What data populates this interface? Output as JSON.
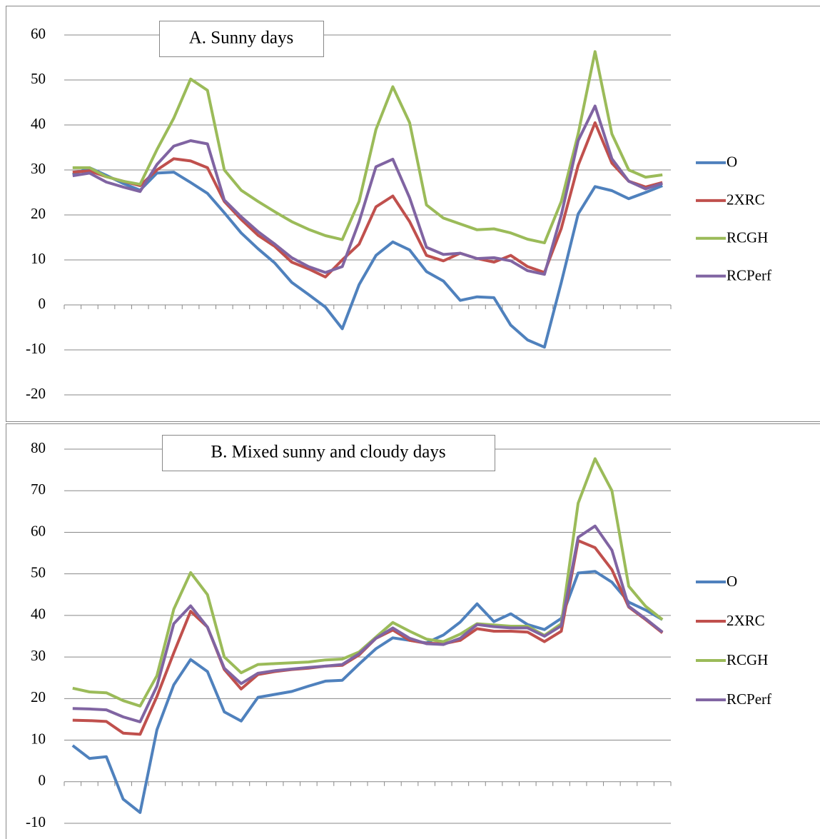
{
  "chart_data": [
    {
      "type": "line",
      "title": "A. Sunny days",
      "categories": [
        null,
        null,
        null,
        null,
        null,
        null,
        null,
        null,
        null,
        null,
        null,
        null,
        null,
        null,
        null,
        null,
        null,
        null,
        null,
        null,
        null,
        null,
        null,
        null,
        null,
        null,
        null,
        null,
        null,
        null,
        null,
        null,
        null,
        null,
        null,
        null
      ],
      "series": [
        {
          "name": "O",
          "color": "#4f81bd",
          "values": [
            29,
            30.5,
            28.8,
            27,
            25.5,
            29.3,
            29.5,
            27.2,
            24.8,
            20.5,
            16,
            12.5,
            9.3,
            5,
            2.3,
            -0.5,
            -5.3,
            4.5,
            11,
            14,
            12.2,
            7.4,
            5.3,
            1,
            1.8,
            1.6,
            -4.5,
            -7.8,
            -9.4,
            5,
            20.2,
            26.3,
            25.4,
            23.6,
            25,
            26.5
          ]
        },
        {
          "name": "2XRC",
          "color": "#c0504d",
          "values": [
            29.5,
            29.8,
            28.5,
            27.5,
            26.5,
            30,
            32.5,
            32,
            30.5,
            23,
            19,
            15.5,
            13,
            9.5,
            8,
            6.2,
            10,
            13.5,
            21.8,
            24.2,
            18.5,
            11,
            9.8,
            11.5,
            10.3,
            9.5,
            11,
            8.5,
            7.2,
            17,
            31,
            40.5,
            31.5,
            27.5,
            26.2,
            27.2
          ]
        },
        {
          "name": "RCGH",
          "color": "#9bbb59",
          "values": [
            30.5,
            30.5,
            28.5,
            27.5,
            26.8,
            34.5,
            41.5,
            50.2,
            47.7,
            30,
            25.5,
            23,
            20.7,
            18.5,
            16.8,
            15.4,
            14.5,
            23,
            39,
            48.5,
            40.5,
            22.2,
            19.3,
            18,
            16.7,
            16.9,
            16,
            14.6,
            13.8,
            23,
            38,
            56.3,
            38,
            30,
            28.4,
            28.9
          ]
        },
        {
          "name": "RCPerf",
          "color": "#8064a2",
          "values": [
            28.7,
            29.3,
            27.3,
            26.2,
            25.2,
            31.2,
            35.3,
            36.5,
            35.8,
            23.3,
            19.6,
            16.3,
            13.5,
            10.5,
            8.5,
            7.2,
            8.5,
            18.5,
            30.7,
            32.4,
            23.8,
            12.8,
            11.2,
            11.5,
            10.3,
            10.5,
            9.8,
            7.6,
            6.8,
            20,
            36.5,
            44.2,
            32.5,
            27.5,
            25.8,
            27
          ]
        }
      ],
      "ylim": [
        -20,
        60
      ],
      "yticks": [
        -20,
        -10,
        0,
        10,
        20,
        30,
        40,
        50,
        60
      ],
      "grid": true,
      "legend": "right"
    },
    {
      "type": "line",
      "title": "B. Mixed sunny and cloudy days",
      "categories": [
        null,
        null,
        null,
        null,
        null,
        null,
        null,
        null,
        null,
        null,
        null,
        null,
        null,
        null,
        null,
        null,
        null,
        null,
        null,
        null,
        null,
        null,
        null,
        null,
        null,
        null,
        null,
        null,
        null,
        null,
        null,
        null,
        null,
        null,
        null,
        null
      ],
      "series": [
        {
          "name": "O",
          "color": "#4f81bd",
          "values": [
            8.7,
            5.6,
            6,
            -4.2,
            -7.4,
            12.5,
            23.3,
            29.4,
            26.5,
            16.8,
            14.6,
            20.3,
            21,
            21.7,
            23,
            24.2,
            24.4,
            28.3,
            32,
            34.6,
            34,
            33.4,
            35.3,
            38.4,
            42.8,
            38.5,
            40.4,
            37.8,
            36.6,
            39.3,
            50.2,
            50.6,
            48,
            43.2,
            41.3,
            39
          ]
        },
        {
          "name": "2XRC",
          "color": "#c0504d",
          "values": [
            14.8,
            14.7,
            14.5,
            11.7,
            11.4,
            20.5,
            31,
            41,
            37.2,
            27,
            22.3,
            25.8,
            26.5,
            27,
            27.3,
            27.8,
            28,
            30.5,
            34.5,
            36.5,
            34,
            33.3,
            33.2,
            34,
            36.8,
            36.2,
            36.2,
            36,
            33.7,
            36.2,
            58,
            56.3,
            51,
            42,
            39,
            35.8
          ]
        },
        {
          "name": "RCGH",
          "color": "#9bbb59",
          "values": [
            22.5,
            21.6,
            21.4,
            19.5,
            18.2,
            25.5,
            41.5,
            50.3,
            45,
            30,
            26.2,
            28.2,
            28.4,
            28.6,
            28.8,
            29.3,
            29.5,
            31.2,
            34.8,
            38.3,
            36.2,
            34.3,
            33.7,
            35.5,
            38,
            37.7,
            37.4,
            37.4,
            35.2,
            38,
            67,
            77.7,
            70,
            47,
            42.2,
            39
          ]
        },
        {
          "name": "RCPerf",
          "color": "#8064a2",
          "values": [
            17.6,
            17.5,
            17.3,
            15.6,
            14.4,
            23,
            38,
            42.3,
            37.2,
            27.3,
            23.6,
            26.1,
            26.7,
            27.1,
            27.5,
            27.8,
            28.2,
            30.8,
            34.5,
            37,
            34.5,
            33.2,
            33,
            34.5,
            37.8,
            37.3,
            37,
            37,
            35,
            37.5,
            58.8,
            61.5,
            55.7,
            42.2,
            39.2,
            36
          ]
        }
      ],
      "ylim": [
        -10,
        80
      ],
      "yticks": [
        -10,
        0,
        10,
        20,
        30,
        40,
        50,
        60,
        70,
        80
      ],
      "grid": true,
      "legend": "right"
    }
  ]
}
